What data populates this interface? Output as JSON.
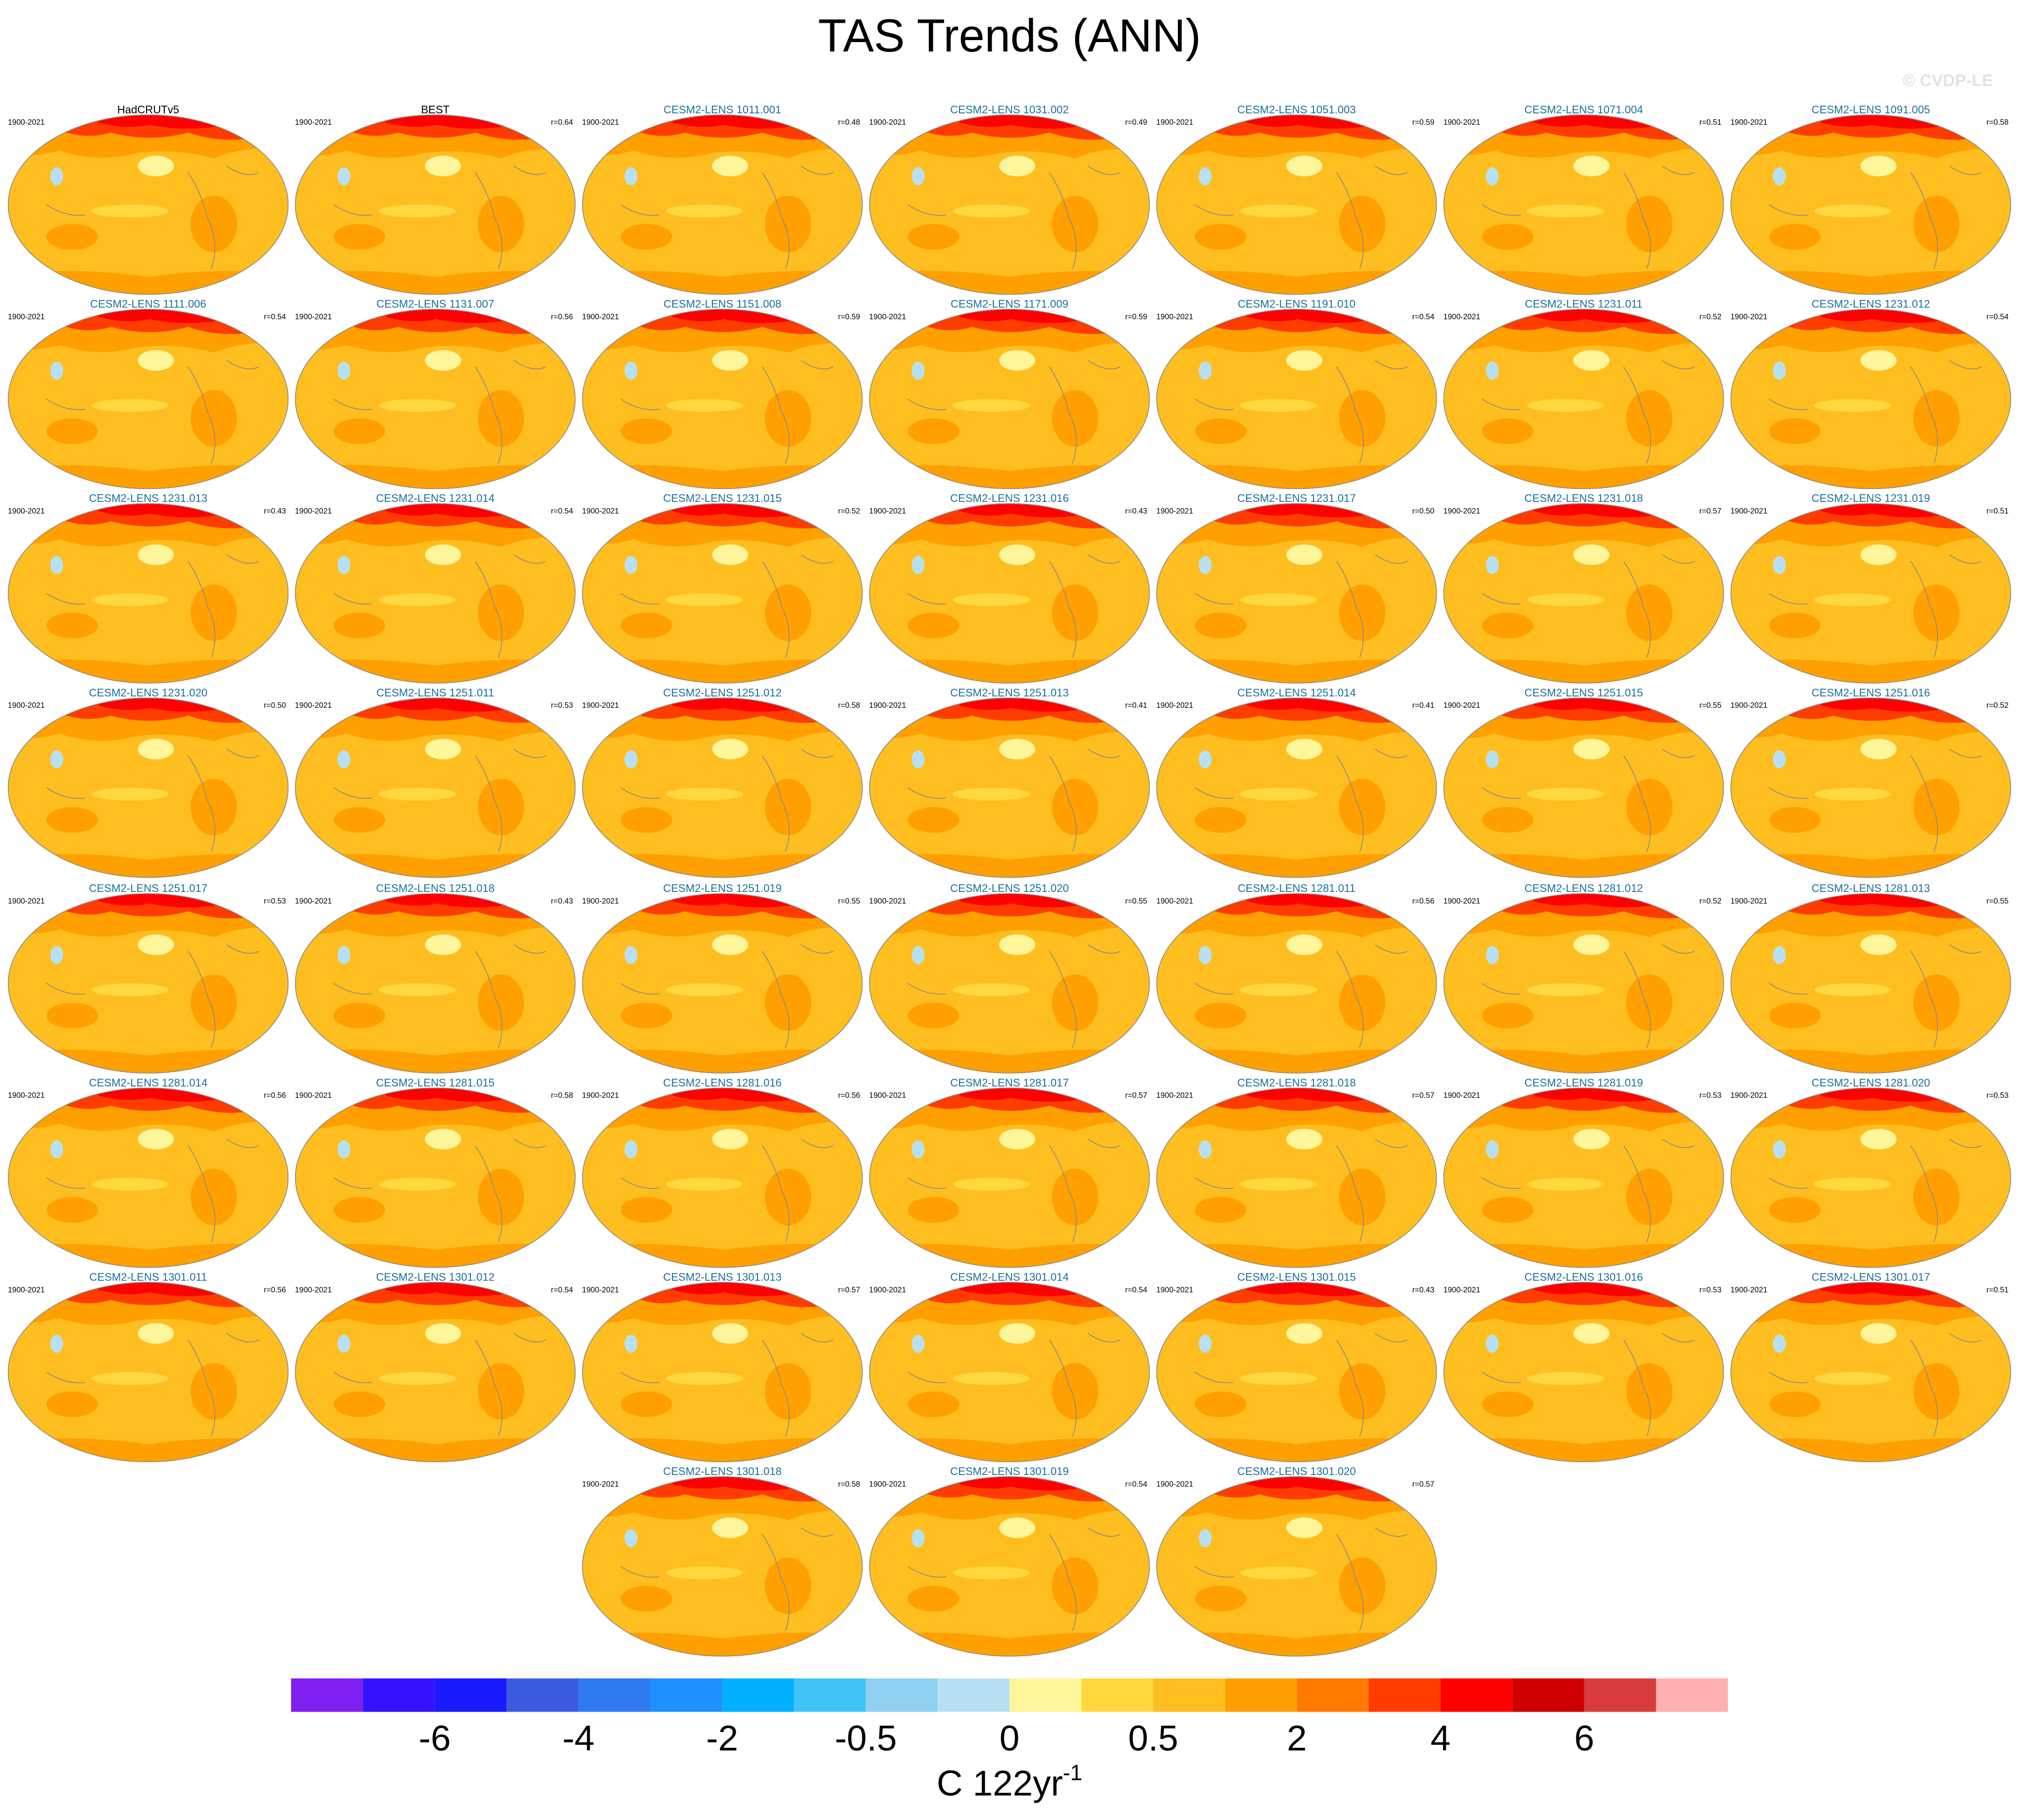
{
  "chart_data": {
    "type": "map-panels",
    "title": "TAS Trends (ANN)",
    "credit": "© CVDP-LE",
    "panels": [
      {
        "title": "HadCRUTv5",
        "period": "1900-2021"
      },
      {
        "title": "BEST",
        "period": "1900-2021",
        "r": "r=0.64"
      },
      {
        "title": "CESM2-LENS 1011.001",
        "period": "1900-2021",
        "r": "r=0.48"
      },
      {
        "title": "CESM2-LENS 1031.002",
        "period": "1900-2021",
        "r": "r=0.49"
      },
      {
        "title": "CESM2-LENS 1051.003",
        "period": "1900-2021",
        "r": "r=0.59"
      },
      {
        "title": "CESM2-LENS 1071.004",
        "period": "1900-2021",
        "r": "r=0.51"
      },
      {
        "title": "CESM2-LENS 1091.005",
        "period": "1900-2021",
        "r": "r=0.58"
      },
      {
        "title": "CESM2-LENS 1111.006",
        "period": "1900-2021",
        "r": "r=0.54"
      },
      {
        "title": "CESM2-LENS 1131.007",
        "period": "1900-2021",
        "r": "r=0.56"
      },
      {
        "title": "CESM2-LENS 1151.008",
        "period": "1900-2021",
        "r": "r=0.59"
      },
      {
        "title": "CESM2-LENS 1171.009",
        "period": "1900-2021",
        "r": "r=0.59"
      },
      {
        "title": "CESM2-LENS 1191.010",
        "period": "1900-2021",
        "r": "r=0.54"
      },
      {
        "title": "CESM2-LENS 1231.011",
        "period": "1900-2021",
        "r": "r=0.52"
      },
      {
        "title": "CESM2-LENS 1231.012",
        "period": "1900-2021",
        "r": "r=0.54"
      },
      {
        "title": "CESM2-LENS 1231.013",
        "period": "1900-2021",
        "r": "r=0.43"
      },
      {
        "title": "CESM2-LENS 1231.014",
        "period": "1900-2021",
        "r": "r=0.54"
      },
      {
        "title": "CESM2-LENS 1231.015",
        "period": "1900-2021",
        "r": "r=0.52"
      },
      {
        "title": "CESM2-LENS 1231.016",
        "period": "1900-2021",
        "r": "r=0.43"
      },
      {
        "title": "CESM2-LENS 1231.017",
        "period": "1900-2021",
        "r": "r=0.50"
      },
      {
        "title": "CESM2-LENS 1231.018",
        "period": "1900-2021",
        "r": "r=0.57"
      },
      {
        "title": "CESM2-LENS 1231.019",
        "period": "1900-2021",
        "r": "r=0.51"
      },
      {
        "title": "CESM2-LENS 1231.020",
        "period": "1900-2021",
        "r": "r=0.50"
      },
      {
        "title": "CESM2-LENS 1251.011",
        "period": "1900-2021",
        "r": "r=0.53"
      },
      {
        "title": "CESM2-LENS 1251.012",
        "period": "1900-2021",
        "r": "r=0.58"
      },
      {
        "title": "CESM2-LENS 1251.013",
        "period": "1900-2021",
        "r": "r=0.41"
      },
      {
        "title": "CESM2-LENS 1251.014",
        "period": "1900-2021",
        "r": "r=0.41"
      },
      {
        "title": "CESM2-LENS 1251.015",
        "period": "1900-2021",
        "r": "r=0.55"
      },
      {
        "title": "CESM2-LENS 1251.016",
        "period": "1900-2021",
        "r": "r=0.52"
      },
      {
        "title": "CESM2-LENS 1251.017",
        "period": "1900-2021",
        "r": "r=0.53"
      },
      {
        "title": "CESM2-LENS 1251.018",
        "period": "1900-2021",
        "r": "r=0.43"
      },
      {
        "title": "CESM2-LENS 1251.019",
        "period": "1900-2021",
        "r": "r=0.55"
      },
      {
        "title": "CESM2-LENS 1251.020",
        "period": "1900-2021",
        "r": "r=0.55"
      },
      {
        "title": "CESM2-LENS 1281.011",
        "period": "1900-2021",
        "r": "r=0.56"
      },
      {
        "title": "CESM2-LENS 1281.012",
        "period": "1900-2021",
        "r": "r=0.52"
      },
      {
        "title": "CESM2-LENS 1281.013",
        "period": "1900-2021",
        "r": "r=0.55"
      },
      {
        "title": "CESM2-LENS 1281.014",
        "period": "1900-2021",
        "r": "r=0.56"
      },
      {
        "title": "CESM2-LENS 1281.015",
        "period": "1900-2021",
        "r": "r=0.58"
      },
      {
        "title": "CESM2-LENS 1281.016",
        "period": "1900-2021",
        "r": "r=0.56"
      },
      {
        "title": "CESM2-LENS 1281.017",
        "period": "1900-2021",
        "r": "r=0.57"
      },
      {
        "title": "CESM2-LENS 1281.018",
        "period": "1900-2021",
        "r": "r=0.57"
      },
      {
        "title": "CESM2-LENS 1281.019",
        "period": "1900-2021",
        "r": "r=0.53"
      },
      {
        "title": "CESM2-LENS 1281.020",
        "period": "1900-2021",
        "r": "r=0.53"
      },
      {
        "title": "CESM2-LENS 1301.011",
        "period": "1900-2021",
        "r": "r=0.56"
      },
      {
        "title": "CESM2-LENS 1301.012",
        "period": "1900-2021",
        "r": "r=0.54"
      },
      {
        "title": "CESM2-LENS 1301.013",
        "period": "1900-2021",
        "r": "r=0.57"
      },
      {
        "title": "CESM2-LENS 1301.014",
        "period": "1900-2021",
        "r": "r=0.54"
      },
      {
        "title": "CESM2-LENS 1301.015",
        "period": "1900-2021",
        "r": "r=0.43"
      },
      {
        "title": "CESM2-LENS 1301.016",
        "period": "1900-2021",
        "r": "r=0.53"
      },
      {
        "title": "CESM2-LENS 1301.017",
        "period": "1900-2021",
        "r": "r=0.51"
      },
      {
        "title": "CESM2-LENS 1301.018",
        "period": "1900-2021",
        "r": "r=0.58"
      },
      {
        "title": "CESM2-LENS 1301.019",
        "period": "1900-2021",
        "r": "r=0.54"
      },
      {
        "title": "CESM2-LENS 1301.020",
        "period": "1900-2021",
        "r": "r=0.57"
      }
    ],
    "colorbar": {
      "colors": [
        "#8020f0",
        "#3412ff",
        "#1a1aff",
        "#3a5be0",
        "#2f7af0",
        "#1e90ff",
        "#00b0ff",
        "#40c4f8",
        "#90d0f0",
        "#b8e0f4",
        "#fff59a",
        "#ffd840",
        "#ffbe20",
        "#ffa000",
        "#ff7a00",
        "#ff3c00",
        "#ff0000",
        "#d00000",
        "#d83c3c",
        "#ffb0b0"
      ],
      "ticks": [
        -6,
        -4,
        -2,
        -0.5,
        0,
        0.5,
        2,
        4,
        6
      ],
      "unit": "C 122yr",
      "unit_exponent": "-1"
    }
  }
}
